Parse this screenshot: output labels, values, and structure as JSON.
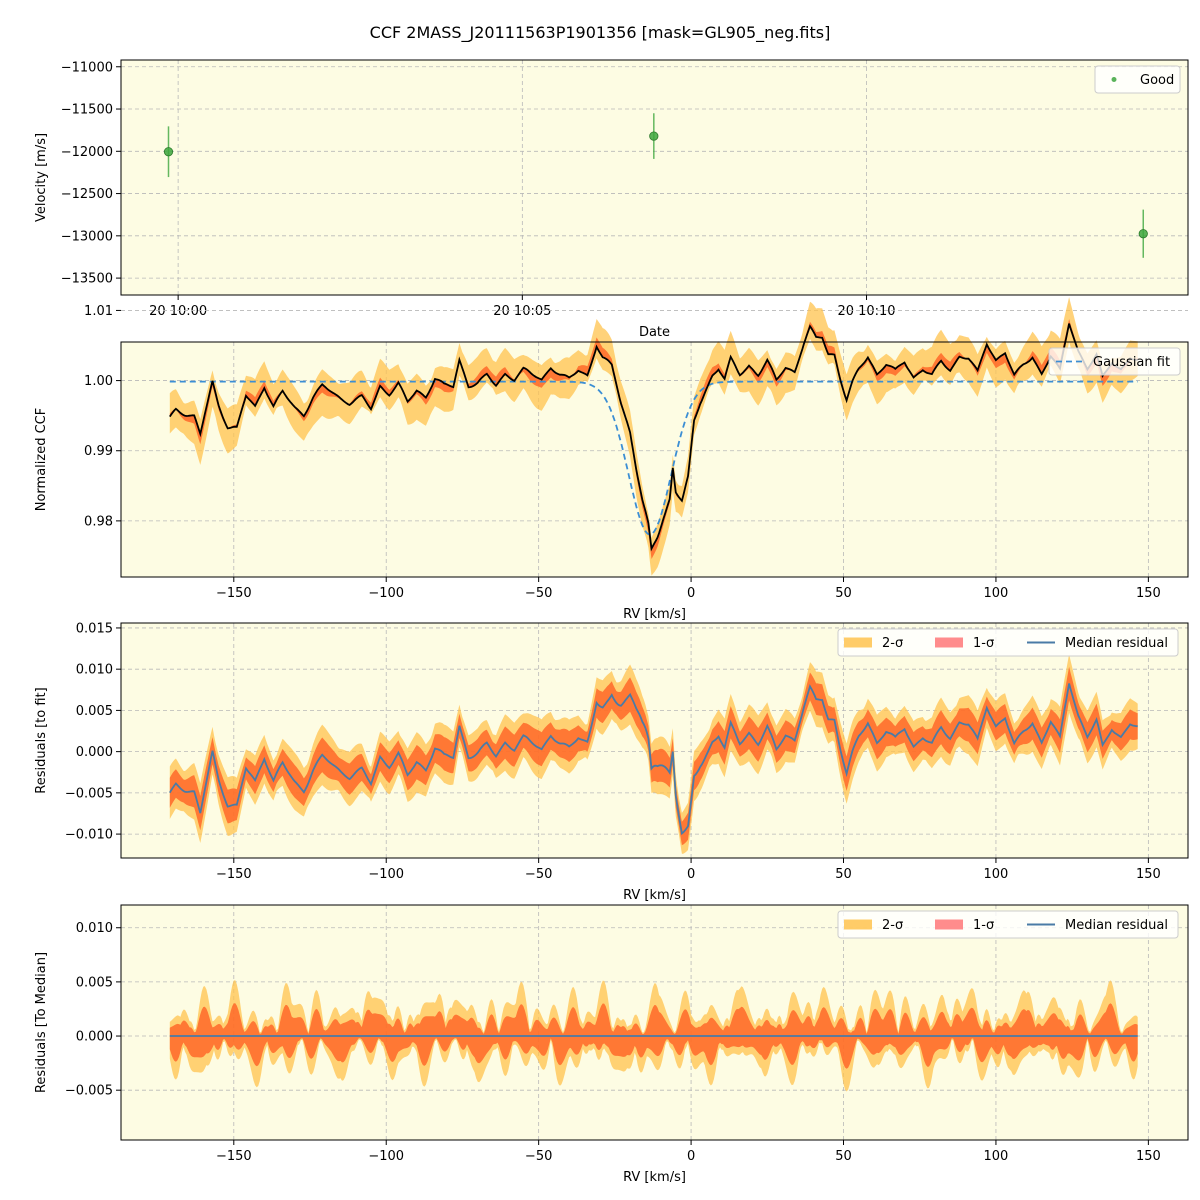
{
  "figure": {
    "title": "CCF 2MASS_J20111563P1901356 [mask=GL905_neg.fits]",
    "background": "#fdfce3",
    "grid": true
  },
  "colors": {
    "good": "#3da63d",
    "ccf_line": "#000000",
    "gauss": "#3b8ed4",
    "one_sigma": "#ff5a1f",
    "two_sigma": "#ffc34d",
    "median_resid": "#4a7ba6"
  },
  "chart_data": [
    {
      "type": "scatter",
      "xlabel": "Date",
      "ylabel": "Velocity [m/s]",
      "x_ticks": [
        "20 10:00",
        "20 10:05",
        "20 10:10"
      ],
      "x_tick_minutes": [
        0,
        5,
        10
      ],
      "xlim_minutes": [
        -0.83,
        14.67
      ],
      "ylim": [
        -13700,
        -10920
      ],
      "y_ticks": [
        -11000,
        -11500,
        -12000,
        -12500,
        -13000,
        -13500
      ],
      "legend": [
        "Good"
      ],
      "legend_loc": "upper right",
      "series": [
        {
          "name": "Good",
          "points": [
            {
              "minutes": -0.14,
              "y": -12005,
              "err": 300
            },
            {
              "minutes": 6.91,
              "y": -11820,
              "err": 270
            },
            {
              "minutes": 14.02,
              "y": -12975,
              "err": 285
            }
          ]
        }
      ]
    },
    {
      "type": "line",
      "xlabel": "RV [km/s]",
      "ylabel": "Normalized CCF",
      "xlim": [
        -187,
        163
      ],
      "ylim": [
        0.972,
        1.0055
      ],
      "x_ticks": [
        -150,
        -100,
        -50,
        0,
        50,
        100,
        150
      ],
      "y_ticks": [
        0.98,
        0.99,
        1.0,
        1.01
      ],
      "y_tick_labels": [
        "0.98",
        "0.99",
        "1.00",
        "1.01"
      ],
      "legend": [
        "Gaussian fit"
      ],
      "legend_loc": "upper right",
      "rv_range": [
        -171,
        146.5
      ],
      "ccf_samples": [
        [
          -171,
          0.9945
        ],
        [
          -169,
          0.9958
        ],
        [
          -166,
          0.9953
        ],
        [
          -163,
          0.995
        ],
        [
          -161,
          0.9925
        ],
        [
          -159,
          0.9965
        ],
        [
          -157,
          1.0002
        ],
        [
          -155,
          0.9968
        ],
        [
          -152,
          0.9935
        ],
        [
          -149,
          0.993
        ],
        [
          -146,
          0.9975
        ],
        [
          -143,
          0.996
        ],
        [
          -140,
          0.999
        ],
        [
          -137,
          0.9962
        ],
        [
          -134,
          0.9985
        ],
        [
          -130,
          0.9965
        ],
        [
          -127,
          0.9955
        ],
        [
          -124,
          0.9978
        ],
        [
          -121,
          0.9992
        ],
        [
          -118,
          0.9982
        ],
        [
          -115,
          0.9972
        ],
        [
          -112,
          0.9965
        ],
        [
          -108,
          0.9975
        ],
        [
          -105,
          0.996
        ],
        [
          -102,
          0.9995
        ],
        [
          -99,
          0.9985
        ],
        [
          -96,
          0.9998
        ],
        [
          -93,
          0.997
        ],
        [
          -90,
          0.9985
        ],
        [
          -87,
          0.9975
        ],
        [
          -84,
          1.0
        ],
        [
          -81,
          0.999
        ],
        [
          -78,
          0.999
        ],
        [
          -76,
          1.003
        ],
        [
          -73,
          0.9995
        ],
        [
          -70,
          1.0
        ],
        [
          -67,
          1.001
        ],
        [
          -64,
          0.9995
        ],
        [
          -61,
          1.001
        ],
        [
          -58,
          1.0
        ],
        [
          -55,
          1.0012
        ],
        [
          -52,
          1.0005
        ],
        [
          -49,
          1.0
        ],
        [
          -46,
          1.002
        ],
        [
          -43,
          1.001
        ],
        [
          -40,
          1.0005
        ],
        [
          -37,
          1.0018
        ],
        [
          -34,
          1.001
        ],
        [
          -31,
          1.005
        ],
        [
          -29,
          1.003
        ],
        [
          -26,
          1.0018
        ],
        [
          -23,
          0.9965
        ],
        [
          -20,
          0.9925
        ],
        [
          -18,
          0.9875
        ],
        [
          -16,
          0.983
        ],
        [
          -14,
          0.9795
        ],
        [
          -13,
          0.976
        ],
        [
          -11,
          0.978
        ],
        [
          -9,
          0.9808
        ],
        [
          -7,
          0.9835
        ],
        [
          -6,
          0.988
        ],
        [
          -5,
          0.9845
        ],
        [
          -3,
          0.983
        ],
        [
          -1,
          0.986
        ],
        [
          1,
          0.994
        ],
        [
          3,
          0.9965
        ],
        [
          5,
          0.9985
        ],
        [
          7,
          1.0005
        ],
        [
          9,
          1.0015
        ],
        [
          11,
          1.0
        ],
        [
          13,
          1.003
        ],
        [
          16,
          1.001
        ],
        [
          19,
          1.0025
        ],
        [
          22,
          1.0012
        ],
        [
          25,
          1.003
        ],
        [
          28,
          1.0
        ],
        [
          31,
          1.0018
        ],
        [
          34,
          1.001
        ],
        [
          37,
          1.005
        ],
        [
          39,
          1.0072
        ],
        [
          41,
          1.0058
        ],
        [
          43,
          1.0062
        ],
        [
          45,
          1.004
        ],
        [
          47,
          1.004
        ],
        [
          49,
          1.0005
        ],
        [
          51,
          0.9975
        ],
        [
          53,
          1.0
        ],
        [
          55,
          1.0018
        ],
        [
          58,
          1.0035
        ],
        [
          61,
          1.0008
        ],
        [
          64,
          1.002
        ],
        [
          67,
          1.001
        ],
        [
          70,
          1.0025
        ],
        [
          73,
          1.0005
        ],
        [
          76,
          1.0018
        ],
        [
          79,
          1.001
        ],
        [
          82,
          1.003
        ],
        [
          85,
          1.0018
        ],
        [
          88,
          1.0035
        ],
        [
          91,
          1.003
        ],
        [
          94,
          1.0008
        ],
        [
          97,
          1.005
        ],
        [
          100,
          1.0028
        ],
        [
          103,
          1.004
        ],
        [
          106,
          1.0008
        ],
        [
          109,
          1.0025
        ],
        [
          112,
          1.0038
        ],
        [
          115,
          1.0012
        ],
        [
          118,
          1.0035
        ],
        [
          121,
          1.0012
        ],
        [
          124,
          1.008
        ],
        [
          127,
          1.004
        ],
        [
          130,
          1.0015
        ],
        [
          133,
          1.0035
        ],
        [
          135,
          1.0005
        ],
        [
          138,
          1.003
        ],
        [
          141,
          1.002
        ],
        [
          144,
          1.0035
        ],
        [
          146.5,
          1.0028
        ]
      ],
      "gaussian_fit": {
        "baseline": 0.99985,
        "depth": 0.0218,
        "center": -13.5,
        "sigma": 7.0
      }
    },
    {
      "type": "area",
      "xlabel": "RV [km/s]",
      "ylabel": "Residuals [to fit]",
      "xlim": [
        -187,
        163
      ],
      "ylim": [
        -0.0129,
        0.0156
      ],
      "x_ticks": [
        -150,
        -100,
        -50,
        0,
        50,
        100,
        150
      ],
      "y_ticks": [
        -0.01,
        -0.005,
        0.0,
        0.005,
        0.01,
        0.015
      ],
      "y_tick_labels": [
        "−0.010",
        "−0.005",
        "0.000",
        "0.005",
        "0.010",
        "0.015"
      ],
      "legend": [
        "2-σ",
        "1-σ",
        "Median residual"
      ],
      "legend_loc": "upper right"
    },
    {
      "type": "area",
      "xlabel": "RV [km/s]",
      "ylabel": "Residuals [To Median]",
      "xlim": [
        -187,
        163
      ],
      "ylim": [
        -0.0096,
        0.0121
      ],
      "x_ticks": [
        -150,
        -100,
        -50,
        0,
        50,
        100,
        150
      ],
      "y_ticks": [
        -0.005,
        0.0,
        0.005,
        0.01
      ],
      "y_tick_labels": [
        "−0.005",
        "0.000",
        "0.005",
        "0.010"
      ],
      "legend": [
        "2-σ",
        "1-σ",
        "Median residual"
      ],
      "legend_loc": "upper right"
    }
  ]
}
